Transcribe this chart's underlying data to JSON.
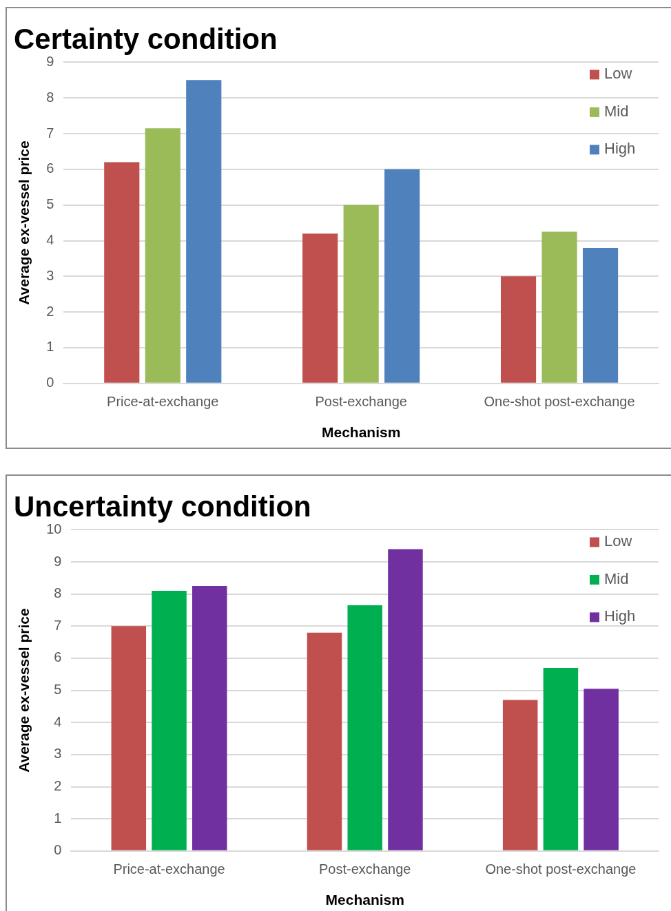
{
  "chart_data": [
    {
      "type": "bar",
      "title": "Certainty condition",
      "xlabel": "Mechanism",
      "ylabel": "Average ex-vessel price",
      "categories": [
        "Price-at-exchange",
        "Post-exchange",
        "One-shot post-exchange"
      ],
      "series": [
        {
          "name": "Low",
          "color": "#c0504d",
          "values": [
            6.2,
            4.2,
            3.0
          ]
        },
        {
          "name": "Mid",
          "color": "#9bbb59",
          "values": [
            7.15,
            5.0,
            4.25
          ]
        },
        {
          "name": "High",
          "color": "#4f81bd",
          "values": [
            8.5,
            6.0,
            3.8
          ]
        }
      ],
      "ylim": [
        0,
        9
      ],
      "yticks": [
        0,
        1,
        2,
        3,
        4,
        5,
        6,
        7,
        8,
        9
      ],
      "grid": "y",
      "legend": "top right"
    },
    {
      "type": "bar",
      "title": "Uncertainty condition",
      "xlabel": "Mechanism",
      "ylabel": "Average ex-vessel price",
      "categories": [
        "Price-at-exchange",
        "Post-exchange",
        "One-shot post-exchange"
      ],
      "series": [
        {
          "name": "Low",
          "color": "#c0504d",
          "values": [
            7.0,
            6.8,
            4.7
          ]
        },
        {
          "name": "Mid",
          "color": "#00b050",
          "values": [
            8.1,
            7.65,
            5.7
          ]
        },
        {
          "name": "High",
          "color": "#7030a0",
          "values": [
            8.25,
            9.4,
            5.05
          ]
        }
      ],
      "ylim": [
        0,
        10
      ],
      "yticks": [
        0,
        1,
        2,
        3,
        4,
        5,
        6,
        7,
        8,
        9,
        10
      ],
      "grid": "y",
      "legend": "top right"
    }
  ]
}
